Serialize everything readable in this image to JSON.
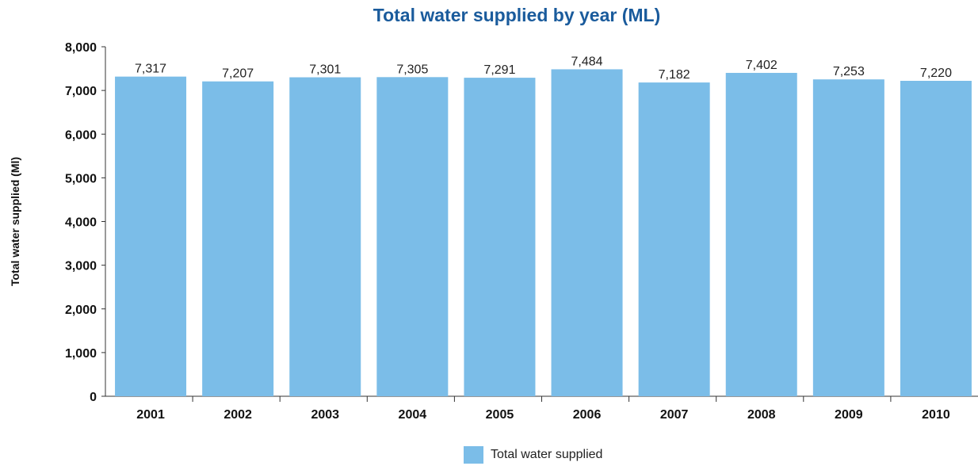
{
  "chart_data": {
    "type": "bar",
    "title": "Total water supplied by year (ML)",
    "xlabel": "",
    "ylabel": "Total water supplied (Ml)",
    "categories": [
      "2001",
      "2002",
      "2003",
      "2004",
      "2005",
      "2006",
      "2007",
      "2008",
      "2009",
      "2010"
    ],
    "series": [
      {
        "name": "Total water supplied",
        "values": [
          7317,
          7207,
          7301,
          7305,
          7291,
          7484,
          7182,
          7402,
          7253,
          7220
        ]
      }
    ],
    "data_labels": [
      "7,317",
      "7,207",
      "7,301",
      "7,305",
      "7,291",
      "7,484",
      "7,182",
      "7,402",
      "7,253",
      "7,220"
    ],
    "ylim": [
      0,
      8000
    ],
    "yticks": [
      0,
      1000,
      2000,
      3000,
      4000,
      5000,
      6000,
      7000,
      8000
    ],
    "ytick_labels": [
      "0",
      "1,000",
      "2,000",
      "3,000",
      "4,000",
      "5,000",
      "6,000",
      "7,000",
      "8,000"
    ],
    "grid": false,
    "legend_position": "bottom-center",
    "colors": {
      "bar": "#7bbde8",
      "title": "#1a5b9c",
      "axis": "#333333"
    }
  }
}
